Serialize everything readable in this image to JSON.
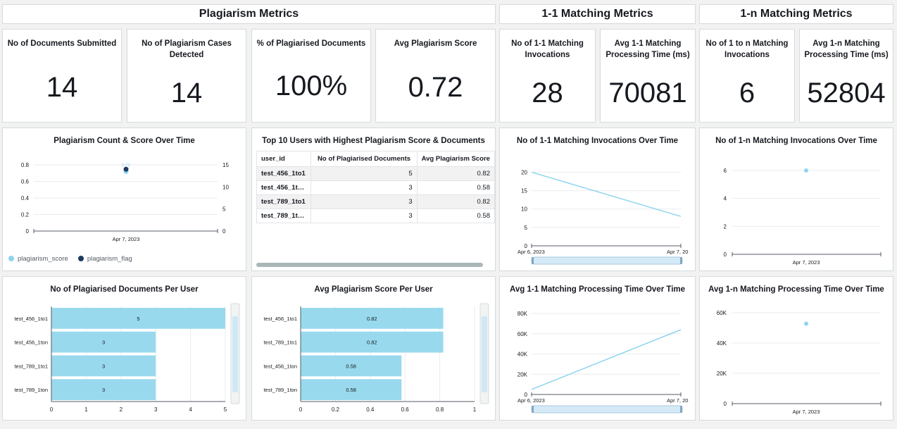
{
  "sections": {
    "plagiarism": "Plagiarism Metrics",
    "one_to_one": "1-1 Matching Metrics",
    "one_to_n": "1-n Matching Metrics"
  },
  "kpis": [
    {
      "label": "No of Documents Submitted",
      "value": "14"
    },
    {
      "label": "No of Plagiarism Cases Detected",
      "value": "14"
    },
    {
      "label": "% of Plagiarised Documents",
      "value": "100%"
    },
    {
      "label": "Avg Plagiarism Score",
      "value": "0.72"
    },
    {
      "label": "No of 1-1 Matching Invocations",
      "value": "28"
    },
    {
      "label": "Avg 1-1 Matching Processing Time (ms)",
      "value": "70081"
    },
    {
      "label": "No of 1 to n Matching Invocations",
      "value": "6"
    },
    {
      "label": "Avg 1-n Matching Processing Time (ms)",
      "value": "52804"
    }
  ],
  "colors": {
    "light": "#8fd4ee",
    "dark": "#1f3a5f",
    "bar": "#99d9ee"
  },
  "table": {
    "title": "Top 10 Users with Highest Plagiarism Score & Documents",
    "headers": [
      "user_id",
      "No of Plagiarised Documents",
      "Avg Plagiarism Score"
    ],
    "rows": [
      [
        "test_456_1to1",
        "5",
        "0.82"
      ],
      [
        "test_456_1t…",
        "3",
        "0.58"
      ],
      [
        "test_789_1to1",
        "3",
        "0.82"
      ],
      [
        "test_789_1t…",
        "3",
        "0.58"
      ]
    ]
  },
  "chart_data": [
    {
      "type": "scatter",
      "title": "Plagiarism Count & Score Over Time",
      "categories": [
        "Apr 7, 2023"
      ],
      "series": [
        {
          "name": "plagiarism_score",
          "values": [
            0.72
          ],
          "axis": "left"
        },
        {
          "name": "plagiarism_flag",
          "values": [
            14
          ],
          "axis": "right"
        }
      ],
      "yticks_left": [
        "0",
        "0.2",
        "0.4",
        "0.6",
        "0.8"
      ],
      "yticks_right": [
        "0",
        "5",
        "10",
        "15"
      ],
      "data_label": "0.72",
      "legend": "bottom-left"
    },
    {
      "type": "line",
      "title": "No of 1-1 Matching Invocations Over Time",
      "x": [
        "Apr 6, 2023",
        "Apr 7, 20"
      ],
      "values": [
        20,
        8
      ],
      "yticks": [
        "0",
        "5",
        "10",
        "15",
        "20"
      ],
      "ylim": [
        0,
        22
      ]
    },
    {
      "type": "scatter",
      "title": "No of 1-n Matching Invocations Over Time",
      "x": [
        "Apr 7, 2023"
      ],
      "values": [
        6
      ],
      "yticks": [
        "0",
        "2",
        "4",
        "6"
      ],
      "ylim": [
        0,
        6.4
      ]
    },
    {
      "type": "bar",
      "title": "No of Plagiarised Documents Per User",
      "categories": [
        "test_456_1to1",
        "test_456_1ton",
        "test_789_1to1",
        "test_789_1ton"
      ],
      "values": [
        5,
        3,
        3,
        3
      ],
      "data_labels": [
        "5",
        "3",
        "3",
        "3"
      ],
      "xticks": [
        "0",
        "1",
        "2",
        "3",
        "4",
        "5"
      ],
      "xlim": [
        0,
        5
      ]
    },
    {
      "type": "bar",
      "title": "Avg Plagiarism Score Per User",
      "categories": [
        "test_456_1to1",
        "test_789_1to1",
        "test_456_1ton",
        "test_789_1ton"
      ],
      "values": [
        0.82,
        0.82,
        0.58,
        0.58
      ],
      "data_labels": [
        "0.82",
        "0.82",
        "0.58",
        "0.58"
      ],
      "xticks": [
        "0",
        "0.2",
        "0.4",
        "0.6",
        "0.8",
        "1"
      ],
      "xlim": [
        0,
        1
      ]
    },
    {
      "type": "line",
      "title": "Avg 1-1 Matching Processing Time Over Time",
      "x": [
        "Apr 6, 2023",
        "Apr 7, 20"
      ],
      "values": [
        5000,
        64000
      ],
      "yticks": [
        "0",
        "20K",
        "40K",
        "60K",
        "80K"
      ],
      "ylim": [
        0,
        80000
      ]
    },
    {
      "type": "scatter",
      "title": "Avg 1-n Matching Processing Time Over Time",
      "x": [
        "Apr 7, 2023"
      ],
      "values": [
        52804
      ],
      "yticks": [
        "0",
        "20K",
        "40K",
        "60K"
      ],
      "ylim": [
        0,
        60000
      ]
    }
  ]
}
